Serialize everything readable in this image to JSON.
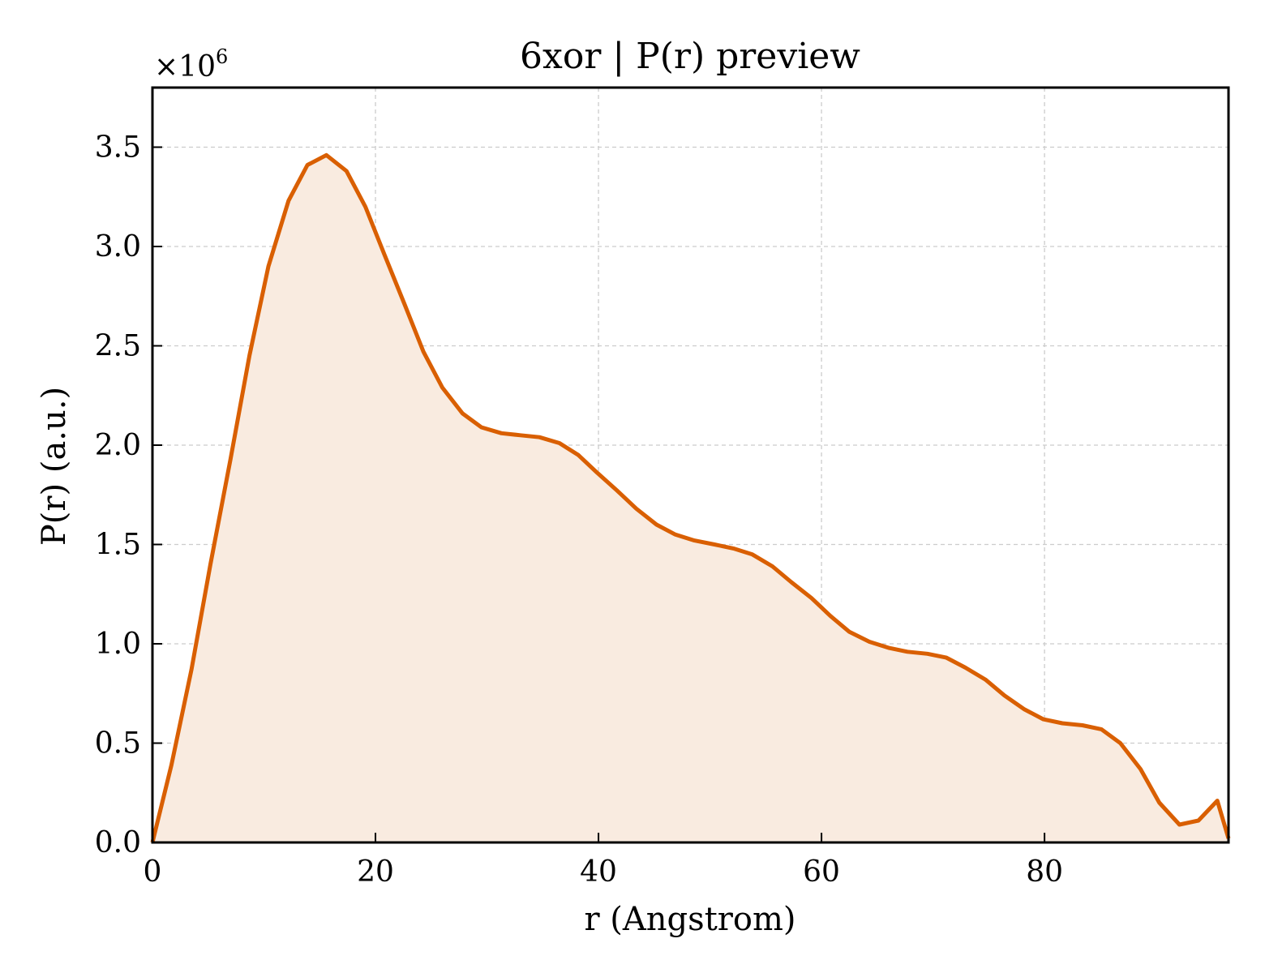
{
  "chart_data": {
    "type": "area",
    "title": "6xor | P(r) preview",
    "xlabel": "r (Angstrom)",
    "ylabel": "P(r) (a.u.)",
    "y_multiplier_label": "×10",
    "y_multiplier_exponent": "6",
    "xlim": [
      0,
      96.5
    ],
    "ylim": [
      0,
      3.8
    ],
    "xticks": [
      0,
      20,
      40,
      60,
      80
    ],
    "xtick_labels": [
      "0",
      "20",
      "40",
      "60",
      "80"
    ],
    "yticks": [
      0.0,
      0.5,
      1.0,
      1.5,
      2.0,
      2.5,
      3.0,
      3.5
    ],
    "ytick_labels": [
      "0.0",
      "0.5",
      "1.0",
      "1.5",
      "2.0",
      "2.5",
      "3.0",
      "3.5"
    ],
    "grid": true,
    "line_color": "#d95f02",
    "fill_color": "#f9ebe0",
    "series": [
      {
        "x": [
          0,
          1.7,
          3.5,
          5.2,
          7.0,
          8.7,
          10.4,
          12.2,
          13.9,
          15.6,
          17.4,
          19.1,
          20.8,
          22.6,
          24.3,
          26.0,
          27.8,
          29.5,
          31.3,
          33.0,
          34.7,
          36.5,
          38.2,
          39.9,
          41.7,
          43.4,
          45.2,
          46.9,
          48.6,
          50.4,
          52.1,
          53.8,
          55.6,
          57.3,
          59.1,
          60.8,
          62.5,
          64.3,
          66.0,
          67.7,
          69.5,
          71.2,
          72.9,
          74.7,
          76.4,
          78.2,
          79.9,
          81.6,
          83.4,
          85.1,
          86.8,
          88.6,
          90.3,
          92.1,
          93.8,
          95.5,
          96.5
        ],
        "y": [
          0.0,
          0.39,
          0.87,
          1.4,
          1.93,
          2.45,
          2.9,
          3.23,
          3.41,
          3.46,
          3.38,
          3.2,
          2.96,
          2.71,
          2.47,
          2.29,
          2.16,
          2.09,
          2.06,
          2.05,
          2.04,
          2.01,
          1.95,
          1.86,
          1.77,
          1.68,
          1.6,
          1.55,
          1.52,
          1.5,
          1.48,
          1.45,
          1.39,
          1.31,
          1.23,
          1.14,
          1.06,
          1.01,
          0.98,
          0.96,
          0.95,
          0.93,
          0.88,
          0.82,
          0.74,
          0.67,
          0.62,
          0.6,
          0.59,
          0.57,
          0.5,
          0.37,
          0.2,
          0.09,
          0.11,
          0.21,
          0.02
        ]
      }
    ]
  }
}
